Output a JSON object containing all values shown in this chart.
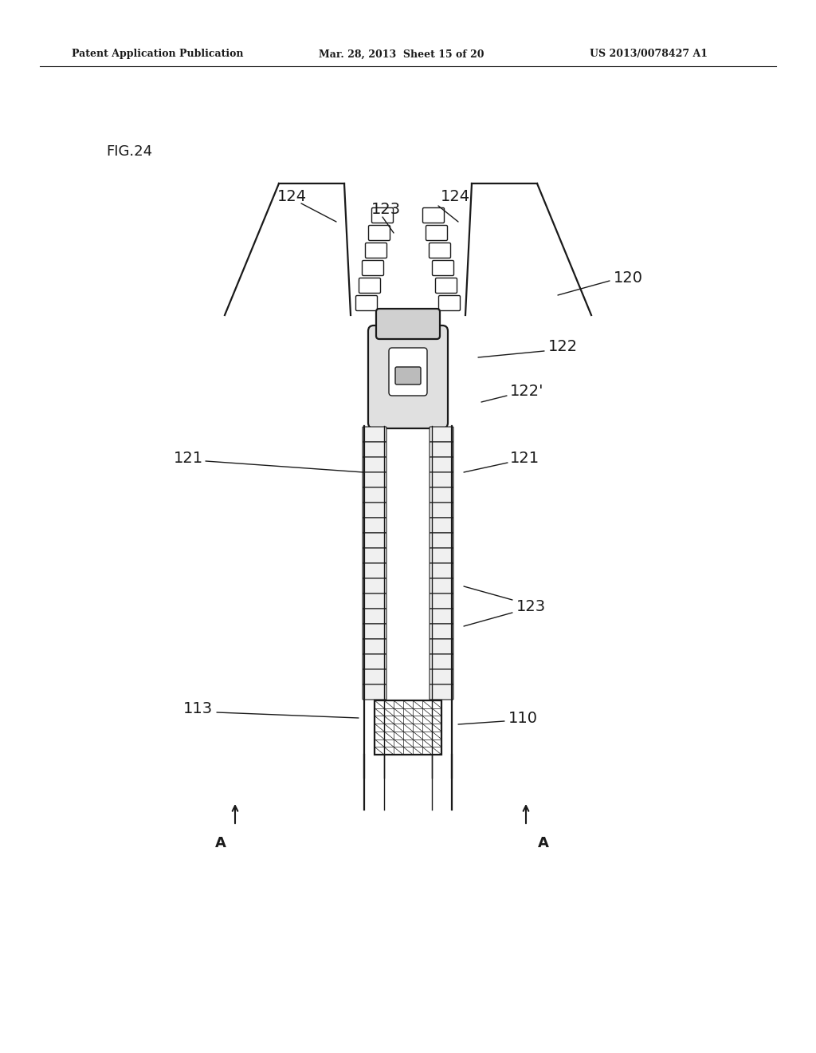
{
  "bg_color": "#ffffff",
  "lc": "#1a1a1a",
  "lw_main": 1.6,
  "lw_thin": 1.0,
  "header_left": "Patent Application Publication",
  "header_mid": "Mar. 28, 2013  Sheet 15 of 20",
  "header_right": "US 2013/0078427 A1",
  "fig_label": "FIG.24",
  "figsize": [
    10.24,
    13.2
  ],
  "dpi": 100
}
